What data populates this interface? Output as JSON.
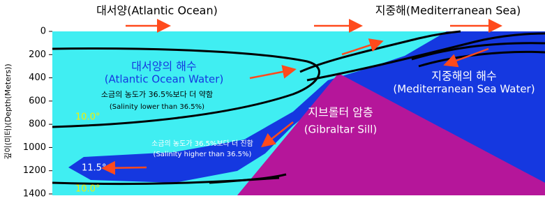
{
  "header": {
    "left": "대서양(Atlantic Ocean)",
    "right": "지중해(Mediterranean Sea)"
  },
  "axis": {
    "label": "깊이(미터)(Depth(Meters))",
    "ticks": [
      0,
      200,
      400,
      600,
      800,
      1000,
      1200,
      1400
    ]
  },
  "atlantic": {
    "title": "대서양의 해수",
    "subtitle": "(Atlantic Ocean Water)",
    "note": "소금의 농도가 36.5%보다 더 약함",
    "note_en": "(Salinity lower than 36.5%)",
    "temp_upper": "10.0°",
    "temp_lower": "10.0°"
  },
  "lens": {
    "temp": "11.5°",
    "note": "소금의 농도가 36.5%보다 더 진함",
    "note_en": "(Salinity higher than 36.5%)"
  },
  "mediterranean": {
    "title": "지중해의 해수",
    "subtitle": "(Mediterranean Sea Water)"
  },
  "sill": {
    "title": "지브롤터 암층",
    "subtitle": "(Gibraltar Sill)"
  }
}
